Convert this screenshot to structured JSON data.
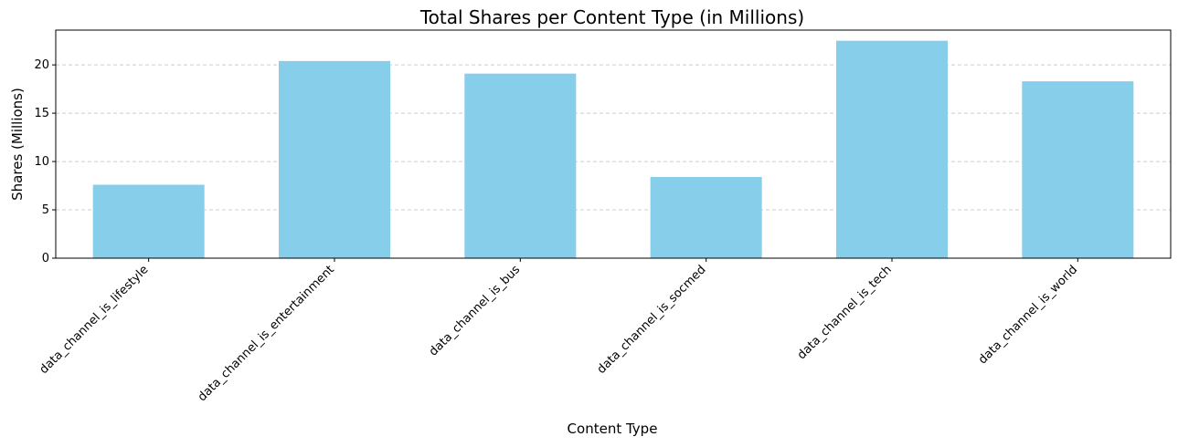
{
  "chart_data": {
    "type": "bar",
    "title": "Total Shares per Content Type (in Millions)",
    "xlabel": "Content Type",
    "ylabel": "Shares (Millions)",
    "categories": [
      "data_channel_is_lifestyle",
      "data_channel_is_entertainment",
      "data_channel_is_bus",
      "data_channel_is_socmed",
      "data_channel_is_tech",
      "data_channel_is_world"
    ],
    "values": [
      7.6,
      20.4,
      19.1,
      8.4,
      22.5,
      18.3
    ],
    "ylim": [
      0,
      23.6
    ],
    "yticks": [
      0,
      5,
      10,
      15,
      20
    ],
    "grid": "horizontal dashed",
    "bar_color": "#87CEEB",
    "grid_color": "#cccccc"
  }
}
